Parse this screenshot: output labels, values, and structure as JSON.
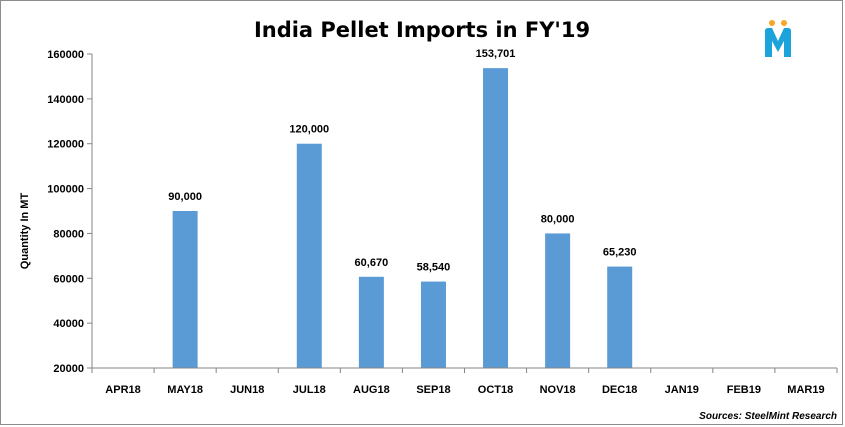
{
  "chart_data": {
    "type": "bar",
    "title": "India Pellet Imports in FY'19",
    "ylabel": "Quantity In MT",
    "xlabel": "",
    "categories": [
      "APR18",
      "MAY18",
      "JUN18",
      "JUL18",
      "AUG18",
      "SEP18",
      "OCT18",
      "NOV18",
      "DEC18",
      "JAN19",
      "FEB19",
      "MAR19"
    ],
    "values": [
      null,
      90000,
      null,
      120000,
      60670,
      58540,
      153701,
      80000,
      65230,
      null,
      null,
      null
    ],
    "data_labels": [
      null,
      "90,000",
      null,
      "120,000",
      "60,670",
      "58,540",
      "153,701",
      "80,000",
      "65,230",
      null,
      null,
      null
    ],
    "ylim": [
      20000,
      160000
    ],
    "yticks": [
      20000,
      40000,
      60000,
      80000,
      100000,
      120000,
      140000,
      160000
    ],
    "ytick_labels": [
      "20000",
      "40000",
      "60000",
      "80000",
      "100000",
      "120000",
      "140000",
      "160000"
    ],
    "grid": false,
    "bar_color": "#5B9BD5",
    "source": "Sources: SteelMint Research"
  },
  "logo": {
    "letter": "M",
    "color": "#1ca3dc",
    "accent_color": "#f5a623"
  }
}
